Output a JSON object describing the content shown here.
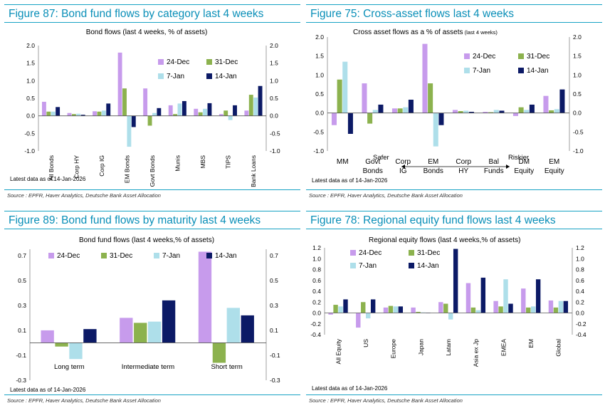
{
  "colors": {
    "24-Dec": "#c79bec",
    "31-Dec": "#8cb24e",
    "7-Jan": "#aedfea",
    "14-Jan": "#0c1a66"
  },
  "panels": [
    {
      "title": "Figure 87: Bond fund flows by category last 4 weeks",
      "source": "Source : EPFR, Haver Analytics, Deutsche Bank Asset Allocation",
      "chart_data": {
        "type": "bar",
        "title": "Bond flows (last 4 weeks, % of assets)",
        "categories": [
          "All Bonds",
          "Corp HY",
          "Corp IG",
          "EM Bonds",
          "Govt Bonds",
          "Munis",
          "MBS",
          "TIPS",
          "Bank Loans"
        ],
        "series": [
          {
            "name": "24-Dec",
            "values": [
              0.4,
              0.08,
              0.13,
              1.8,
              0.78,
              0.3,
              0.2,
              0.05,
              0.15
            ]
          },
          {
            "name": "31-Dec",
            "values": [
              0.12,
              0.05,
              0.12,
              0.78,
              -0.28,
              0.05,
              0.1,
              0.15,
              0.6
            ]
          },
          {
            "name": "7-Jan",
            "values": [
              0.12,
              0.06,
              0.15,
              -0.88,
              0.08,
              0.35,
              0.2,
              -0.12,
              0.52
            ]
          },
          {
            "name": "14-Jan",
            "values": [
              0.25,
              0.03,
              0.35,
              -0.32,
              0.22,
              0.42,
              0.36,
              0.3,
              0.85
            ]
          }
        ],
        "ylim": [
          -1.0,
          2.0
        ],
        "yticks": [
          "-1.0",
          "-0.5",
          "0.0",
          "0.5",
          "1.0",
          "1.5",
          "2.0"
        ],
        "legend": "top-right",
        "note": "Latest data as of 14-Jan-2026"
      }
    },
    {
      "title": "Figure 75: Cross-asset flows last 4 weeks",
      "source": "Source : EPFR, Haver Analytics, Deutsche Bank Asset Allocation",
      "chart_data": {
        "type": "bar",
        "title": "Cross asset flows as a % of assets",
        "title_suffix": "(last 4 weeks)",
        "categories": [
          "MM",
          "Govt Bonds",
          "Corp IG",
          "EM Bonds",
          "Corp HY",
          "Bal Funds",
          "DM Equity",
          "EM Equity"
        ],
        "series": [
          {
            "name": "24-Dec",
            "values": [
              -0.32,
              0.78,
              0.12,
              1.82,
              0.08,
              0.03,
              -0.08,
              0.45
            ]
          },
          {
            "name": "31-Dec",
            "values": [
              0.88,
              -0.28,
              0.12,
              0.78,
              0.05,
              0.02,
              0.15,
              0.07
            ]
          },
          {
            "name": "7-Jan",
            "values": [
              1.35,
              0.08,
              0.15,
              -0.88,
              0.06,
              0.08,
              0.08,
              0.1
            ]
          },
          {
            "name": "14-Jan",
            "values": [
              -0.55,
              0.22,
              0.35,
              -0.32,
              0.03,
              0.06,
              0.22,
              0.62
            ]
          }
        ],
        "ylim": [
          -1.0,
          2.0
        ],
        "yticks": [
          "-1.0",
          "-0.5",
          "0.0",
          "0.5",
          "1.0",
          "1.5",
          "2.0"
        ],
        "legend": "top-right",
        "annotations": {
          "safer": "Safer",
          "riskier": "Riskier"
        },
        "note": "Latest data as of 14-Jan-2026"
      }
    },
    {
      "title": "Figure 89: Bond fund flows by maturity last 4 weeks",
      "source": "Source : EPFR, Haver Analytics, Deutsche Bank Asset Allocation",
      "chart_data": {
        "type": "bar",
        "title": "Bond fund flows (last 4 weeks,% of assets)",
        "categories": [
          "Long term",
          "Intermediate term",
          "Short term"
        ],
        "series": [
          {
            "name": "24-Dec",
            "values": [
              0.1,
              0.2,
              0.73
            ]
          },
          {
            "name": "31-Dec",
            "values": [
              -0.03,
              0.16,
              -0.16
            ]
          },
          {
            "name": "7-Jan",
            "values": [
              -0.13,
              0.17,
              0.28
            ]
          },
          {
            "name": "14-Jan",
            "values": [
              0.11,
              0.34,
              0.22
            ]
          }
        ],
        "ylim": [
          -0.3,
          0.75
        ],
        "yticks": [
          "-0.3",
          "-0.1",
          "0.1",
          "0.3",
          "0.5",
          "0.7"
        ],
        "legend": "top",
        "note": "Latest data as of 14-Jan-2026"
      }
    },
    {
      "title": "Figure 78: Regional equity fund flows last 4 weeks",
      "source": "Source : EPFR, Haver Analytics, Deutsche Bank Asset Allocation",
      "chart_data": {
        "type": "bar",
        "title": "Regional equity flows (last 4 weeks,% of assets)",
        "categories": [
          "All Equity",
          "US",
          "Europe",
          "Japan",
          "Latam",
          "Asia ex Jp",
          "EMEA",
          "EM",
          "Global"
        ],
        "series": [
          {
            "name": "24-Dec",
            "values": [
              -0.03,
              -0.27,
              0.1,
              0.1,
              0.2,
              0.55,
              0.22,
              0.45,
              0.23
            ]
          },
          {
            "name": "31-Dec",
            "values": [
              0.15,
              0.2,
              0.13,
              0.02,
              0.17,
              0.1,
              0.12,
              0.1,
              0.1
            ]
          },
          {
            "name": "7-Jan",
            "values": [
              0.12,
              -0.1,
              0.12,
              0.01,
              -0.12,
              0.05,
              0.62,
              0.12,
              0.22
            ]
          },
          {
            "name": "14-Jan",
            "values": [
              0.25,
              0.25,
              0.12,
              0.0,
              1.18,
              0.65,
              0.17,
              0.62,
              0.22
            ]
          }
        ],
        "ylim": [
          -0.4,
          1.2
        ],
        "yticks": [
          "-0.4",
          "-0.2",
          "0.0",
          "0.2",
          "0.4",
          "0.6",
          "0.8",
          "1.0",
          "1.2"
        ],
        "legend": "top-left",
        "note": "Latest data as of 14-Jan-2026"
      }
    }
  ]
}
